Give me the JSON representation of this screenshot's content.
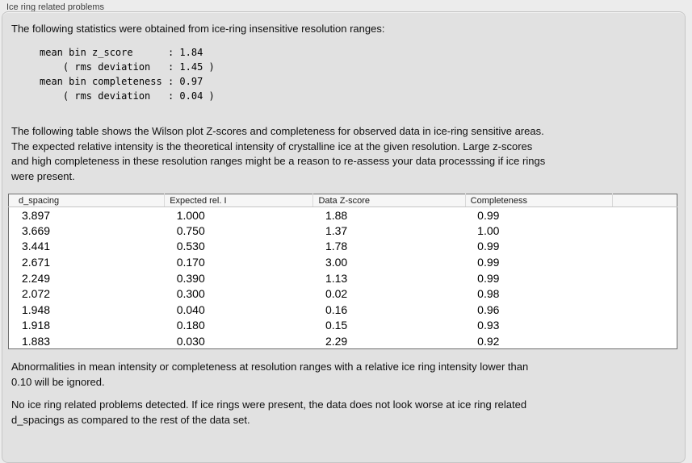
{
  "panel": {
    "title": "Ice ring related problems"
  },
  "intro": {
    "text": "The following statistics were obtained from ice-ring insensitive resolution ranges:"
  },
  "stats": {
    "lines": [
      "mean bin z_score      : 1.84",
      "    ( rms deviation   : 1.45 )",
      "mean bin completeness : 0.97",
      "    ( rms deviation   : 0.04 )"
    ]
  },
  "description": {
    "lines": [
      "The following table shows the Wilson plot Z-scores and completeness for observed data in ice-ring sensitive areas.",
      "The expected relative intensity is the theoretical intensity of crystalline ice at the given resolution. Large z-scores",
      "and high completeness in these resolution ranges might be a reason to re-assess your data processsing if ice rings",
      "were present."
    ]
  },
  "table": {
    "columns": [
      "d_spacing",
      "Expected rel. I",
      "Data Z-score",
      "Completeness",
      ""
    ],
    "rows": [
      [
        "3.897",
        "1.000",
        "1.88",
        "0.99"
      ],
      [
        "3.669",
        "0.750",
        "1.37",
        "1.00"
      ],
      [
        "3.441",
        "0.530",
        "1.78",
        "0.99"
      ],
      [
        "2.671",
        "0.170",
        "3.00",
        "0.99"
      ],
      [
        "2.249",
        "0.390",
        "1.13",
        "0.99"
      ],
      [
        "2.072",
        "0.300",
        "0.02",
        "0.98"
      ],
      [
        "1.948",
        "0.040",
        "0.16",
        "0.96"
      ],
      [
        "1.918",
        "0.180",
        "0.15",
        "0.93"
      ],
      [
        "1.883",
        "0.030",
        "2.29",
        "0.92"
      ]
    ]
  },
  "ignore_note": {
    "lines": [
      "Abnormalities in mean intensity or completeness at resolution ranges with a relative ice ring intensity lower than",
      "0.10 will be ignored."
    ]
  },
  "result_note": {
    "lines": [
      "No ice ring related problems detected. If ice rings were present, the data does not look worse at ice ring related",
      "d_spacings as compared to the rest of the data set."
    ]
  },
  "colors": {
    "page_bg": "#ececec",
    "panel_bg": "#e1e1e1",
    "table_header_bg": "#f6f6f6",
    "table_border": "#6f6f6f"
  }
}
